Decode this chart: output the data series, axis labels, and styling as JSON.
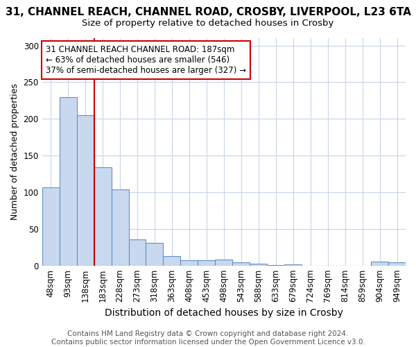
{
  "title": "31, CHANNEL REACH, CHANNEL ROAD, CROSBY, LIVERPOOL, L23 6TA",
  "subtitle": "Size of property relative to detached houses in Crosby",
  "xlabel": "Distribution of detached houses by size in Crosby",
  "ylabel": "Number of detached properties",
  "footer_line1": "Contains HM Land Registry data © Crown copyright and database right 2024.",
  "footer_line2": "Contains public sector information licensed under the Open Government Licence v3.0.",
  "categories": [
    "48sqm",
    "93sqm",
    "138sqm",
    "183sqm",
    "228sqm",
    "273sqm",
    "318sqm",
    "363sqm",
    "408sqm",
    "453sqm",
    "498sqm",
    "543sqm",
    "588sqm",
    "633sqm",
    "679sqm",
    "724sqm",
    "769sqm",
    "814sqm",
    "859sqm",
    "904sqm",
    "949sqm"
  ],
  "values": [
    107,
    230,
    205,
    134,
    104,
    36,
    31,
    13,
    7,
    7,
    8,
    4,
    3,
    1,
    2,
    0,
    0,
    0,
    0,
    5,
    4
  ],
  "bar_color": "#c8d8ee",
  "bar_edge_color": "#6090c8",
  "red_line_x": 3.0,
  "annotation_line1": "31 CHANNEL REACH CHANNEL ROAD: 187sqm",
  "annotation_line2": "← 63% of detached houses are smaller (546)",
  "annotation_line3": "37% of semi-detached houses are larger (327) →",
  "annotation_box_color": "#ffffff",
  "annotation_box_edge_color": "#cc0000",
  "ylim": [
    0,
    310
  ],
  "yticks": [
    0,
    50,
    100,
    150,
    200,
    250,
    300
  ],
  "grid_color": "#c8d4e8",
  "background_color": "#ffffff",
  "title_fontsize": 11,
  "subtitle_fontsize": 9.5,
  "xlabel_fontsize": 10,
  "ylabel_fontsize": 9,
  "tick_fontsize": 8.5,
  "annotation_fontsize": 8.5,
  "footer_fontsize": 7.5
}
